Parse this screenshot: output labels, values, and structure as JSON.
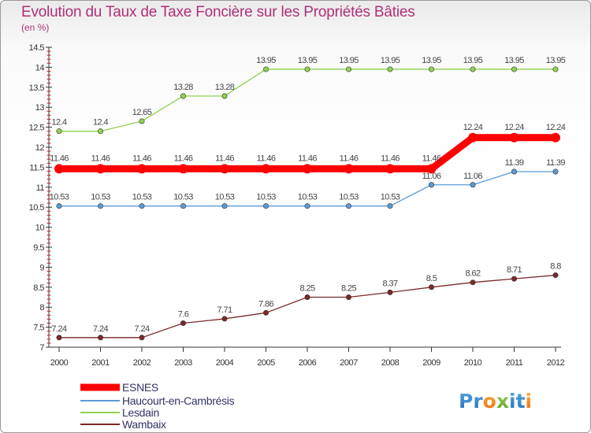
{
  "title": "Evolution du Taux de Taxe Foncière sur les Propriétés Bâties",
  "unit": "(en %)",
  "logo": "Proxiti",
  "chart_data": {
    "type": "line",
    "title": "Evolution du Taux de Taxe Foncière sur les Propriétés Bâties",
    "ylabel": "(en %)",
    "xlabel": "",
    "x": [
      "2000",
      "2001",
      "2002",
      "2003",
      "2004",
      "2005",
      "2006",
      "2007",
      "2008",
      "2009",
      "2010",
      "2011",
      "2012"
    ],
    "ylim": [
      7,
      14.5
    ],
    "yticks": [
      "7",
      "7.5",
      "8",
      "8.5",
      "9",
      "9.5",
      "10",
      "10.5",
      "11",
      "11.5",
      "12",
      "12.5",
      "13",
      "13.5",
      "14",
      "14.5"
    ],
    "grid": false,
    "legend_position": "bottom-left",
    "series": [
      {
        "name": "ESNES",
        "color": "#ff0000",
        "values": [
          11.46,
          11.46,
          11.46,
          11.46,
          11.46,
          11.46,
          11.46,
          11.46,
          11.46,
          11.46,
          12.24,
          12.24,
          12.24
        ],
        "labels": [
          "11.46",
          "11.46",
          "11.46",
          "11.46",
          "11.46",
          "11.46",
          "11.46",
          "11.46",
          "11.46",
          "11.46",
          "12.24",
          "12.24",
          "12.24"
        ]
      },
      {
        "name": "Haucourt-en-Cambrésis",
        "color": "#5b9bd5",
        "values": [
          10.53,
          10.53,
          10.53,
          10.53,
          10.53,
          10.53,
          10.53,
          10.53,
          10.53,
          11.06,
          11.06,
          11.39,
          11.39
        ],
        "labels": [
          "10.53",
          "10.53",
          "10.53",
          "10.53",
          "10.53",
          "10.53",
          "10.53",
          "10.53",
          "10.53",
          "11.06",
          "11.06",
          "11.39",
          "11.39"
        ]
      },
      {
        "name": "Lesdain",
        "color": "#8fd14f",
        "values": [
          12.4,
          12.4,
          12.65,
          13.28,
          13.28,
          13.95,
          13.95,
          13.95,
          13.95,
          13.95,
          13.95,
          13.95,
          13.95
        ],
        "labels": [
          "12.4",
          "12.4",
          "12.65",
          "13.28",
          "13.28",
          "13.95",
          "13.95",
          "13.95",
          "13.95",
          "13.95",
          "13.95",
          "13.95",
          "13.95"
        ]
      },
      {
        "name": "Wambaix",
        "color": "#7a2a2a",
        "values": [
          7.24,
          7.24,
          7.24,
          7.6,
          7.71,
          7.86,
          8.25,
          8.25,
          8.37,
          8.5,
          8.62,
          8.71,
          8.8
        ],
        "labels": [
          "7.24",
          "7.24",
          "7.24",
          "7.6",
          "7.71",
          "7.86",
          "8.25",
          "8.25",
          "8.37",
          "8.5",
          "8.62",
          "8.71",
          "8.8"
        ]
      }
    ]
  }
}
